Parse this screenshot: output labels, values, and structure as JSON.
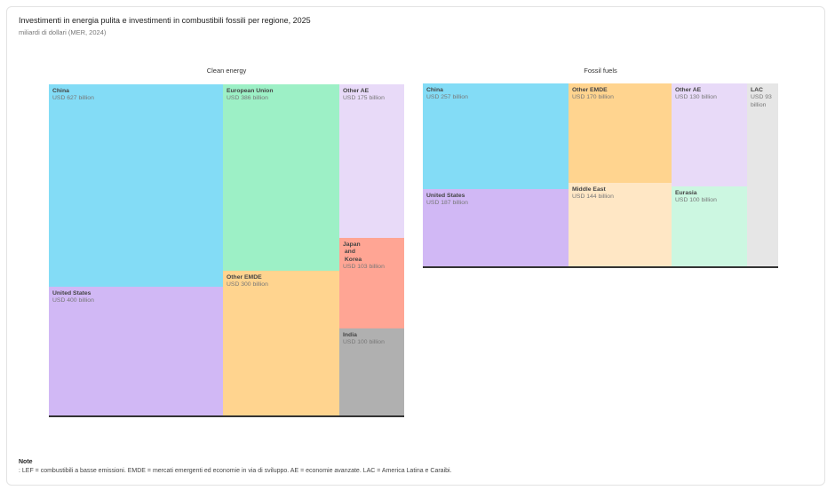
{
  "header": {
    "title": "Investimenti in energia pulita e investimenti in combustibili fossili per regione, 2025",
    "subtitle": "miliardi di dollari (MER, 2024)"
  },
  "footer": {
    "note_label": "Note",
    "note_text": ": LEF = combustibili a basse emissioni. EMDE = mercati emergenti ed economie in via di sviluppo. AE = economie avanzate. LAC = America Latina e Caraibi."
  },
  "colors": {
    "china": "#83dcf6",
    "united_states": "#d1b8f5",
    "european_union": "#9df0c6",
    "other_emde": "#ffd48f",
    "other_ae": "#e8daf8",
    "japan_korea": "#ffa594",
    "india": "#b0b0b0",
    "middle_east": "#ffe7c5",
    "eurasia": "#ccf7e1",
    "lac": "#e6e6e6"
  },
  "chart_data": [
    {
      "type": "treemap",
      "title": "Clean energy",
      "unit": "USD billion",
      "items": [
        {
          "name": "China",
          "value": 627,
          "label": "USD 627 billion",
          "color_key": "china"
        },
        {
          "name": "United States",
          "value": 400,
          "label": "USD 400 billion",
          "color_key": "united_states"
        },
        {
          "name": "European Union",
          "value": 386,
          "label": "USD 386 billion",
          "color_key": "european_union"
        },
        {
          "name": "Other EMDE",
          "value": 300,
          "label": "USD 300 billion",
          "color_key": "other_emde"
        },
        {
          "name": "Other AE",
          "value": 175,
          "label": "USD 175 billion",
          "color_key": "other_ae"
        },
        {
          "name": "Japan\n and\n Korea",
          "value": 103,
          "label": "USD 103 billion",
          "color_key": "japan_korea"
        },
        {
          "name": "India",
          "value": 100,
          "label": "USD 100 billion",
          "color_key": "india"
        }
      ]
    },
    {
      "type": "treemap",
      "title": "Fossil fuels",
      "unit": "USD billion",
      "items": [
        {
          "name": "China",
          "value": 257,
          "label": "USD 257 billion",
          "color_key": "china"
        },
        {
          "name": "United States",
          "value": 187,
          "label": "USD 187 billion",
          "color_key": "united_states"
        },
        {
          "name": "Other EMDE",
          "value": 170,
          "label": "USD 170 billion",
          "color_key": "other_emde"
        },
        {
          "name": "Middle East",
          "value": 144,
          "label": "USD 144 billion",
          "color_key": "middle_east"
        },
        {
          "name": "Other AE",
          "value": 130,
          "label": "USD 130 billion",
          "color_key": "other_ae"
        },
        {
          "name": "Eurasia",
          "value": 100,
          "label": "USD 100 billion",
          "color_key": "eurasia"
        },
        {
          "name": "LAC",
          "value": 93,
          "label": "USD 93\nbillion",
          "color_key": "lac"
        }
      ]
    }
  ]
}
